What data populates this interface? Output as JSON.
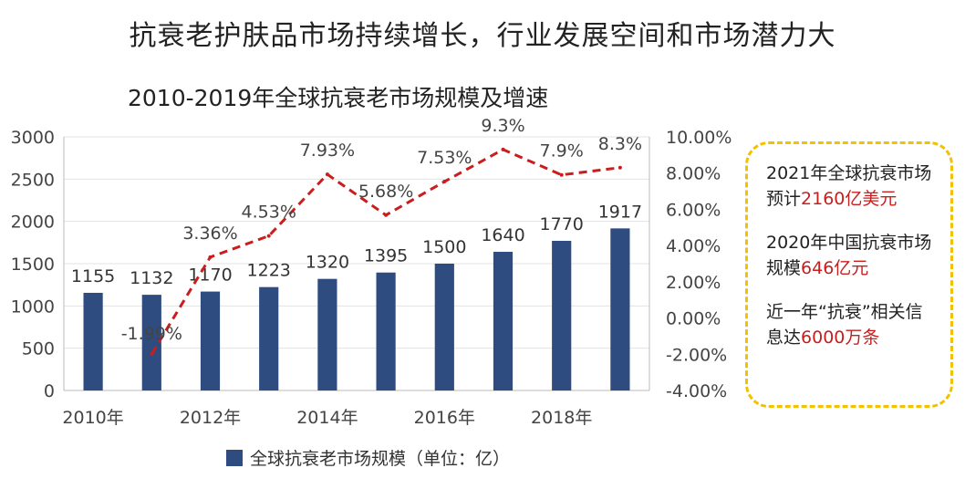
{
  "headline": "抗衰老护肤品市场持续增长，行业发展空间和市场潜力大",
  "chart_data": {
    "type": "bar",
    "title": "2010-2019年全球抗衰老市场规模及增速",
    "x": [
      "2010",
      "2011",
      "2012",
      "2013",
      "2014",
      "2015",
      "2016",
      "2017",
      "2018",
      "2019"
    ],
    "x_tick_labels": [
      "2010年",
      "2012年",
      "2014年",
      "2016年",
      "2018年"
    ],
    "series": [
      {
        "name": "全球抗衰老市场规模（单位：亿）",
        "type": "bar",
        "axis": "left",
        "color": "#2e4c80",
        "values": [
          1155,
          1132,
          1170,
          1223,
          1320,
          1395,
          1500,
          1640,
          1770,
          1917
        ],
        "labels": [
          "1155",
          "1132",
          "1170",
          "1223",
          "1320",
          "1395",
          "1500",
          "1640",
          "1770",
          "1917"
        ]
      },
      {
        "type": "line",
        "axis": "right",
        "color": "#c81e1e",
        "style": "dashed",
        "values": [
          -1.99,
          3.36,
          4.53,
          7.93,
          5.68,
          7.53,
          9.3,
          7.9,
          8.3
        ],
        "x": [
          "2011",
          "2012",
          "2013",
          "2014",
          "2015",
          "2016",
          "2017",
          "2018",
          "2019"
        ],
        "labels": [
          "-1.99%",
          "3.36%",
          "4.53%",
          "7.93%",
          "5.68%",
          "7.53%",
          "9.3%",
          "7.9%",
          "8.3%"
        ]
      }
    ],
    "y_left": {
      "min": 0,
      "max": 3000,
      "ticks": [
        "0",
        "500",
        "1000",
        "1500",
        "2000",
        "2500",
        "3000"
      ]
    },
    "y_right": {
      "min": -4,
      "max": 10,
      "ticks": [
        "-4.00%",
        "-2.00%",
        "0.00%",
        "2.00%",
        "4.00%",
        "6.00%",
        "8.00%",
        "10.00%"
      ]
    },
    "grid": true,
    "legend_position": "bottom"
  },
  "notes": [
    {
      "pre": "2021年全球抗衰市场预计",
      "highlight": "2160亿美元",
      "post": ""
    },
    {
      "pre": "2020年中国抗衰市场规模",
      "highlight": "646亿元",
      "post": ""
    },
    {
      "pre": "近一年“抗衰”相关信息达",
      "highlight": "6000万条",
      "post": ""
    }
  ]
}
